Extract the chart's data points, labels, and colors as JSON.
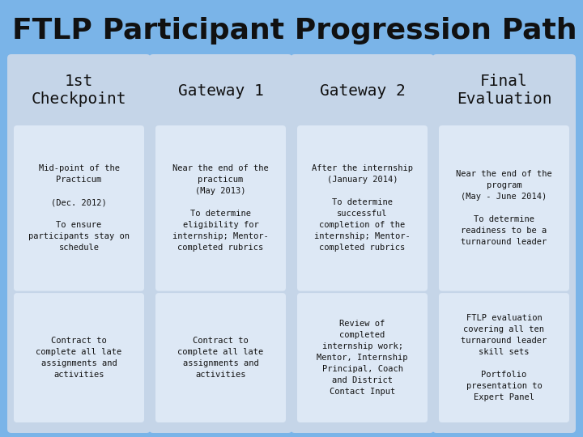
{
  "title": "FTLP Participant Progression Path",
  "bg_color": "#7ab4e8",
  "card_outer_color": "#c5d5e8",
  "card_inner_color": "#dde8f5",
  "columns": [
    {
      "header": "1st\nCheckpoint",
      "top_text": "Mid-point of the\nPracticum\n\n(Dec. 2012)\n\nTo ensure\nparticipants stay on\nschedule",
      "bottom_text": "Contract to\ncomplete all late\nassignments and\nactivities"
    },
    {
      "header": "Gateway 1",
      "top_text": "Near the end of the\npracticum\n(May 2013)\n\nTo determine\neligibility for\ninternship; Mentor-\ncompleted rubrics",
      "bottom_text": "Contract to\ncomplete all late\nassignments and\nactivities"
    },
    {
      "header": "Gateway 2",
      "top_text": "After the internship\n(January 2014)\n\nTo determine\nsuccessful\ncompletion of the\ninternship; Mentor-\ncompleted rubrics",
      "bottom_text": "Review of\ncompleted\ninternship work;\nMentor, Internship\nPrincipal, Coach\nand District\nContact Input"
    },
    {
      "header": "Final\nEvaluation",
      "top_text": "Near the end of the\nprogram\n(May - June 2014)\n\nTo determine\nreadiness to be a\nturnaround leader",
      "bottom_text": "FTLP evaluation\ncovering all ten\nturnaround leader\nskill sets\n\nPortfolio\npresentation to\nExpert Panel"
    }
  ],
  "title_fontsize": 26,
  "header_fontsize": 14,
  "body_fontsize": 7.5
}
